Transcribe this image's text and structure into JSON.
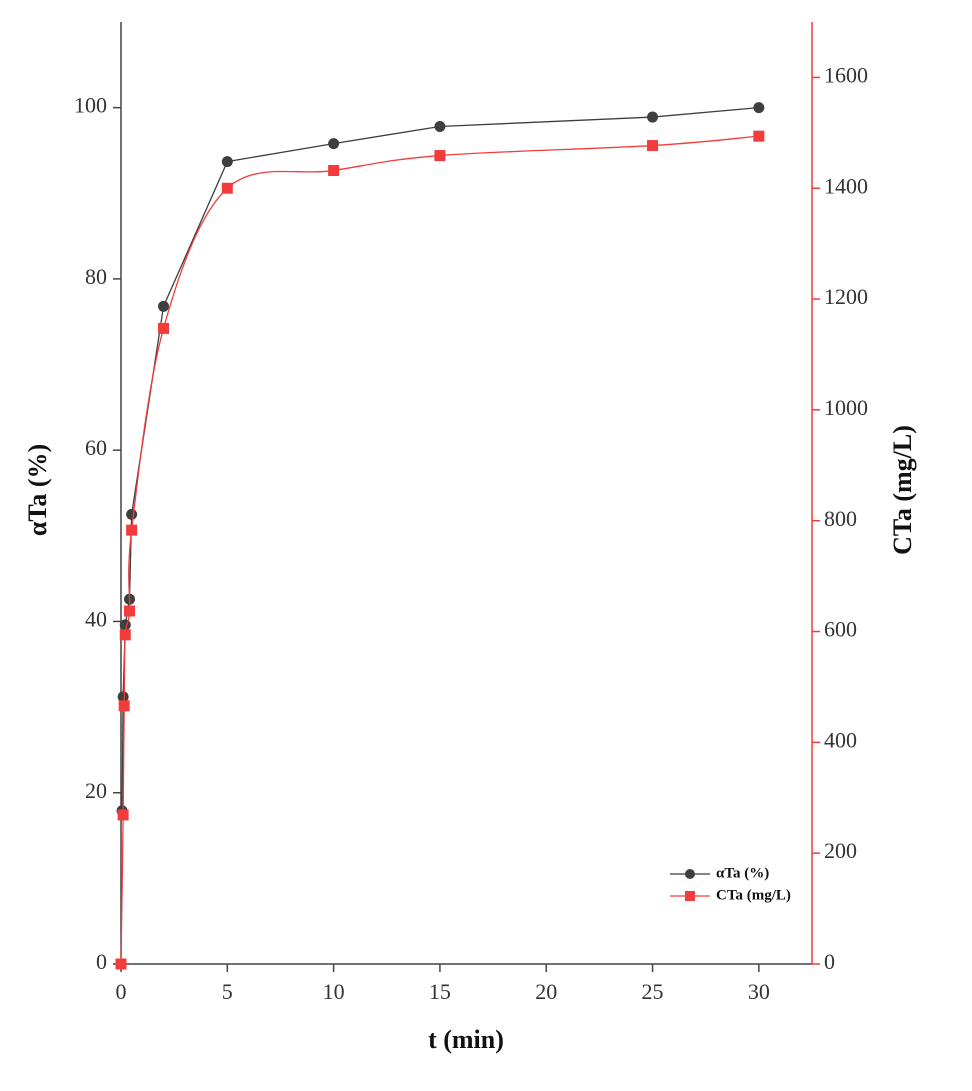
{
  "chart_data": {
    "type": "line",
    "x_label": "t (min)",
    "y_label": "αTa (%)",
    "y2_label": "CTa (mg/L)",
    "xlim": [
      0,
      32.5
    ],
    "xticks": [
      0,
      5,
      10,
      15,
      20,
      25,
      30
    ],
    "ylim": [
      0,
      110
    ],
    "yticks": [
      0,
      20,
      40,
      60,
      80,
      100
    ],
    "y2lim": [
      0,
      1700
    ],
    "y2ticks": [
      0,
      200,
      400,
      600,
      800,
      1000,
      1200,
      1400,
      1600
    ],
    "legend": "lower right",
    "series": [
      {
        "name": "αTa (%)",
        "color": "#3f3f3f",
        "marker": "circle",
        "smooth": false,
        "x": [
          0.05,
          0.1,
          0.2,
          0.4,
          0.5,
          2,
          5,
          10,
          15,
          25,
          30
        ],
        "values": [
          17.9,
          31.2,
          39.6,
          42.6,
          52.5,
          76.8,
          93.7,
          95.8,
          97.8,
          98.9,
          100
        ]
      },
      {
        "name": "CTa (mg/L)",
        "color": "#f23c3c",
        "marker": "square",
        "smooth": true,
        "axis": "y2",
        "x": [
          0,
          0.1,
          0.15,
          0.2,
          0.4,
          0.5,
          2,
          5,
          10,
          15,
          25,
          30
        ],
        "values": [
          0,
          269,
          466,
          594,
          637,
          783,
          1147,
          1400,
          1432,
          1459,
          1477,
          1494
        ]
      }
    ]
  }
}
